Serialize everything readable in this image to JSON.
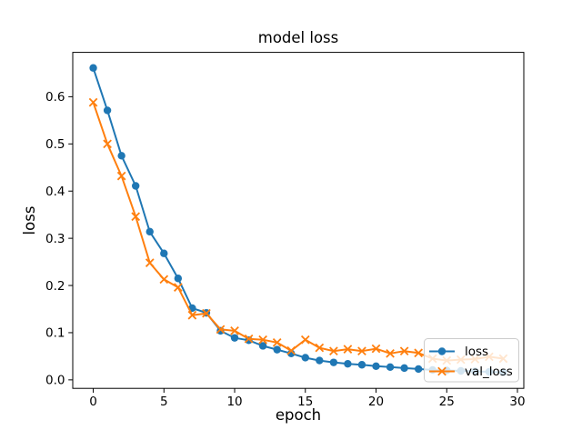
{
  "window": {
    "background": "#ffffff"
  },
  "chart_data": {
    "type": "line",
    "title": "model loss",
    "xlabel": "epoch",
    "ylabel": "loss",
    "x": [
      0,
      1,
      2,
      3,
      4,
      5,
      6,
      7,
      8,
      9,
      10,
      11,
      12,
      13,
      14,
      15,
      16,
      17,
      18,
      19,
      20,
      21,
      22,
      23,
      24,
      25,
      26,
      27,
      28,
      29
    ],
    "series": [
      {
        "name": "loss",
        "color": "#1f77b4",
        "marker": "circle",
        "values": [
          0.661,
          0.571,
          0.475,
          0.411,
          0.314,
          0.268,
          0.215,
          0.152,
          0.142,
          0.104,
          0.089,
          0.084,
          0.072,
          0.064,
          0.056,
          0.047,
          0.041,
          0.037,
          0.034,
          0.032,
          0.029,
          0.027,
          0.025,
          0.023,
          0.021,
          0.02,
          0.019,
          0.018,
          0.017,
          0.016
        ]
      },
      {
        "name": "val_loss",
        "color": "#ff7f0e",
        "marker": "x",
        "values": [
          0.588,
          0.5,
          0.432,
          0.346,
          0.248,
          0.213,
          0.196,
          0.137,
          0.141,
          0.107,
          0.104,
          0.087,
          0.085,
          0.079,
          0.062,
          0.085,
          0.068,
          0.061,
          0.065,
          0.061,
          0.066,
          0.056,
          0.061,
          0.057,
          0.045,
          0.041,
          0.043,
          0.044,
          0.049,
          0.045
        ]
      }
    ],
    "xlim": [
      -1.45,
      30.45
    ],
    "ylim": [
      -0.018,
      0.694
    ],
    "xticks": [
      0,
      5,
      10,
      15,
      20,
      25,
      30
    ],
    "xtick_labels": [
      "0",
      "5",
      "10",
      "15",
      "20",
      "25",
      "30"
    ],
    "yticks": [
      0.0,
      0.1,
      0.2,
      0.3,
      0.4,
      0.5,
      0.6
    ],
    "ytick_labels": [
      "0.0",
      "0.1",
      "0.2",
      "0.3",
      "0.4",
      "0.5",
      "0.6"
    ],
    "grid": false,
    "legend": {
      "position": "lower right",
      "entries": [
        "loss",
        "val_loss"
      ],
      "background": "#ffffff",
      "background_opacity": 0.8,
      "border_color": "#cccccc"
    },
    "colors": {
      "spine": "#000000",
      "tick": "#000000",
      "text": "#000000"
    }
  }
}
